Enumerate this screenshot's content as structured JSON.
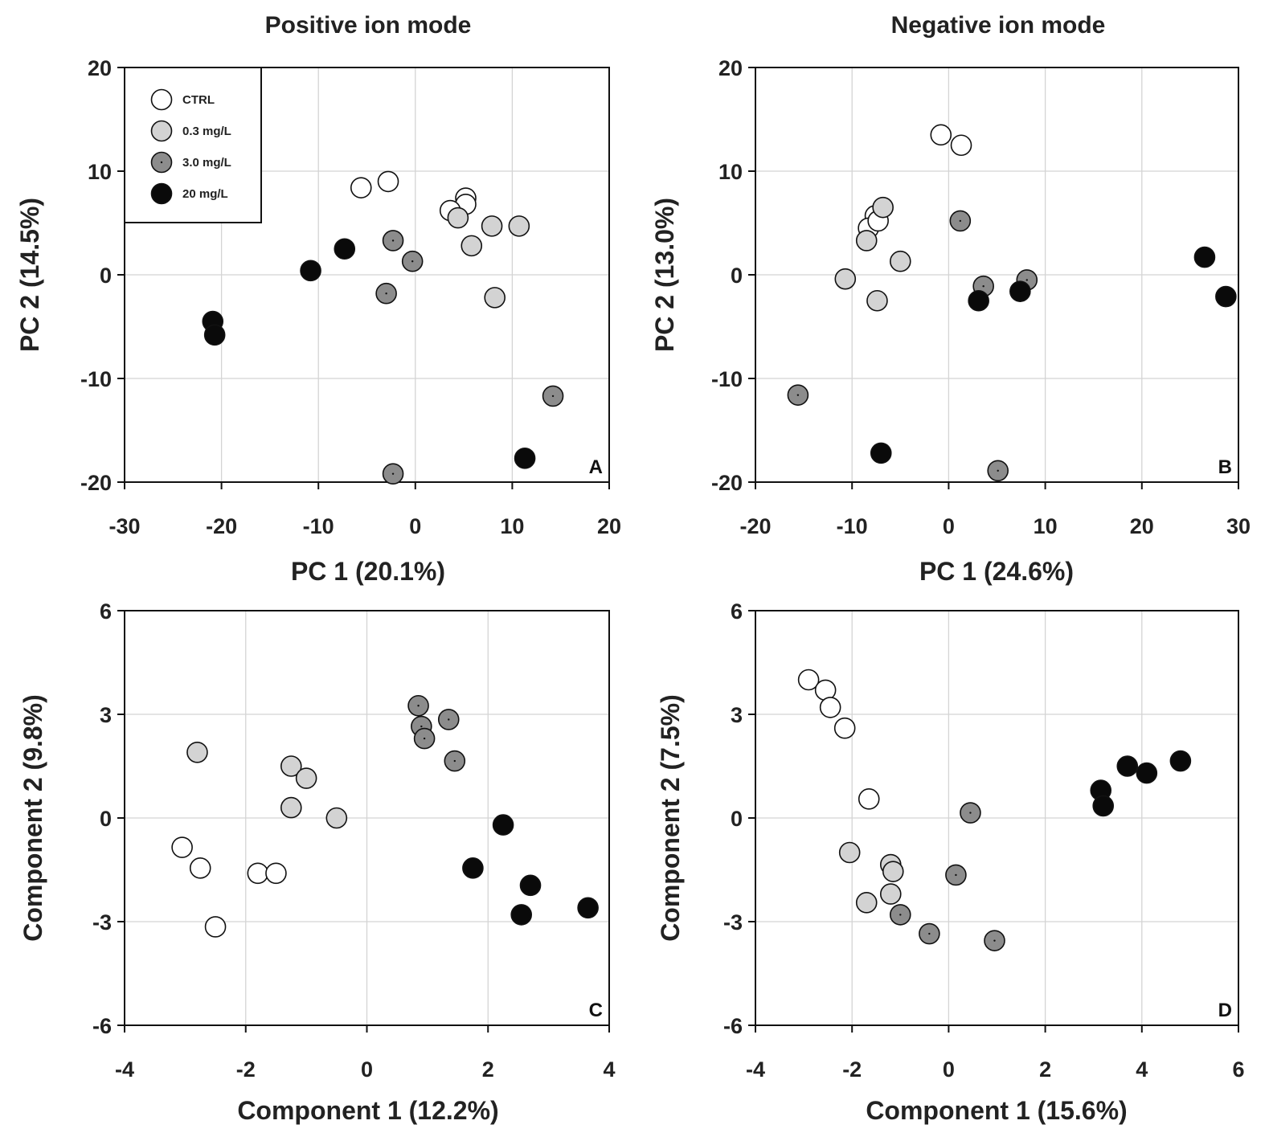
{
  "columns": {
    "left_title": "Positive ion mode",
    "right_title": "Negative ion mode"
  },
  "groups": [
    {
      "name": "CTRL",
      "color": "#ffffff",
      "dot": false
    },
    {
      "name": "0.3 mg/L",
      "color": "#d3d3d3",
      "dot": false
    },
    {
      "name": "3.0 mg/L",
      "color": "#8c8c8c",
      "dot": true
    },
    {
      "name": "20 mg/L",
      "color": "#0a0a0a",
      "dot": false
    }
  ],
  "chart_data": [
    {
      "type": "scatter",
      "panel": "A",
      "xlabel": "PC 1 (20.1%)",
      "ylabel": "PC 2 (14.5%)",
      "xlim": [
        -30,
        20
      ],
      "ylim": [
        -20,
        20
      ],
      "xticks": [
        -30,
        -20,
        -10,
        0,
        10,
        20
      ],
      "yticks": [
        20,
        10,
        0,
        -10,
        -20
      ],
      "grid": true,
      "legend": "top-left",
      "series": [
        {
          "name": "CTRL",
          "points": [
            [
              -5.6,
              8.4
            ],
            [
              -2.8,
              9.0
            ],
            [
              5.2,
              7.4
            ],
            [
              5.2,
              6.8
            ],
            [
              3.6,
              6.2
            ]
          ]
        },
        {
          "name": "0.3 mg/L",
          "points": [
            [
              4.4,
              5.5
            ],
            [
              7.9,
              4.7
            ],
            [
              10.7,
              4.7
            ],
            [
              5.8,
              2.8
            ],
            [
              8.2,
              -2.2
            ]
          ]
        },
        {
          "name": "3.0 mg/L",
          "points": [
            [
              -2.3,
              3.3
            ],
            [
              -0.3,
              1.3
            ],
            [
              -3.0,
              -1.8
            ],
            [
              14.2,
              -11.7
            ],
            [
              -2.3,
              -19.2
            ]
          ]
        },
        {
          "name": "20 mg/L",
          "points": [
            [
              -7.3,
              2.5
            ],
            [
              -10.8,
              0.4
            ],
            [
              -20.9,
              -4.5
            ],
            [
              -20.7,
              -5.8
            ],
            [
              11.3,
              -17.7
            ]
          ]
        }
      ]
    },
    {
      "type": "scatter",
      "panel": "B",
      "xlabel": "PC 1 (24.6%)",
      "ylabel": "PC 2 (13.0%)",
      "xlim": [
        -20,
        30
      ],
      "ylim": [
        -20,
        20
      ],
      "xticks": [
        -20,
        -10,
        0,
        10,
        20,
        30
      ],
      "yticks": [
        20,
        10,
        0,
        -10,
        -20
      ],
      "grid": true,
      "series": [
        {
          "name": "CTRL",
          "points": [
            [
              -0.8,
              13.5
            ],
            [
              1.3,
              12.5
            ],
            [
              -7.6,
              5.7
            ],
            [
              -8.3,
              4.5
            ],
            [
              -7.3,
              5.2
            ]
          ]
        },
        {
          "name": "0.3 mg/L",
          "points": [
            [
              -6.8,
              6.5
            ],
            [
              -8.5,
              3.3
            ],
            [
              -5.0,
              1.3
            ],
            [
              -10.7,
              -0.4
            ],
            [
              -7.4,
              -2.5
            ]
          ]
        },
        {
          "name": "3.0 mg/L",
          "points": [
            [
              1.2,
              5.2
            ],
            [
              3.6,
              -1.1
            ],
            [
              8.1,
              -0.5
            ],
            [
              -15.6,
              -11.6
            ],
            [
              5.1,
              -18.9
            ]
          ]
        },
        {
          "name": "20 mg/L",
          "points": [
            [
              26.5,
              1.7
            ],
            [
              28.7,
              -2.1
            ],
            [
              3.1,
              -2.5
            ],
            [
              7.4,
              -1.6
            ],
            [
              -7.0,
              -17.2
            ]
          ]
        }
      ]
    },
    {
      "type": "scatter",
      "panel": "C",
      "xlabel": "Component  1 (12.2%)",
      "ylabel": "Component 2 (9.8%)",
      "xlim": [
        -4,
        4
      ],
      "ylim": [
        -6,
        6
      ],
      "xticks": [
        -4,
        -2,
        0,
        2,
        4
      ],
      "yticks": [
        6,
        3,
        0,
        -3,
        -6
      ],
      "grid": true,
      "series": [
        {
          "name": "CTRL",
          "points": [
            [
              -3.05,
              -0.85
            ],
            [
              -2.75,
              -1.45
            ],
            [
              -1.8,
              -1.6
            ],
            [
              -1.5,
              -1.6
            ],
            [
              -2.5,
              -3.15
            ]
          ]
        },
        {
          "name": "0.3 mg/L",
          "points": [
            [
              -2.8,
              1.9
            ],
            [
              -1.25,
              1.5
            ],
            [
              -1.0,
              1.15
            ],
            [
              -1.25,
              0.3
            ],
            [
              -0.5,
              0.0
            ]
          ]
        },
        {
          "name": "3.0 mg/L",
          "points": [
            [
              0.85,
              3.25
            ],
            [
              0.9,
              2.65
            ],
            [
              0.95,
              2.3
            ],
            [
              1.35,
              2.85
            ],
            [
              1.45,
              1.65
            ]
          ]
        },
        {
          "name": "20 mg/L",
          "points": [
            [
              2.25,
              -0.2
            ],
            [
              1.75,
              -1.45
            ],
            [
              2.7,
              -1.95
            ],
            [
              2.55,
              -2.8
            ],
            [
              3.65,
              -2.6
            ]
          ]
        }
      ]
    },
    {
      "type": "scatter",
      "panel": "D",
      "xlabel": "Component  1 (15.6%)",
      "ylabel": "Component  2 (7.5%)",
      "xlim": [
        -4,
        6
      ],
      "ylim": [
        -6,
        6
      ],
      "xticks": [
        -4,
        -2,
        0,
        2,
        4,
        6
      ],
      "yticks": [
        6,
        3,
        0,
        -3,
        -6
      ],
      "grid": true,
      "series": [
        {
          "name": "CTRL",
          "points": [
            [
              -2.9,
              4.0
            ],
            [
              -2.55,
              3.7
            ],
            [
              -2.45,
              3.2
            ],
            [
              -2.15,
              2.6
            ],
            [
              -1.65,
              0.55
            ]
          ]
        },
        {
          "name": "0.3 mg/L",
          "points": [
            [
              -2.05,
              -1.0
            ],
            [
              -1.2,
              -1.35
            ],
            [
              -1.15,
              -1.55
            ],
            [
              -1.2,
              -2.2
            ],
            [
              -1.7,
              -2.45
            ]
          ]
        },
        {
          "name": "3.0 mg/L",
          "points": [
            [
              0.45,
              0.15
            ],
            [
              0.15,
              -1.65
            ],
            [
              -1.0,
              -2.8
            ],
            [
              -0.4,
              -3.35
            ],
            [
              0.95,
              -3.55
            ]
          ]
        },
        {
          "name": "20 mg/L",
          "points": [
            [
              3.15,
              0.8
            ],
            [
              3.2,
              0.35
            ],
            [
              3.7,
              1.5
            ],
            [
              4.1,
              1.3
            ],
            [
              4.8,
              1.65
            ]
          ]
        }
      ]
    }
  ]
}
